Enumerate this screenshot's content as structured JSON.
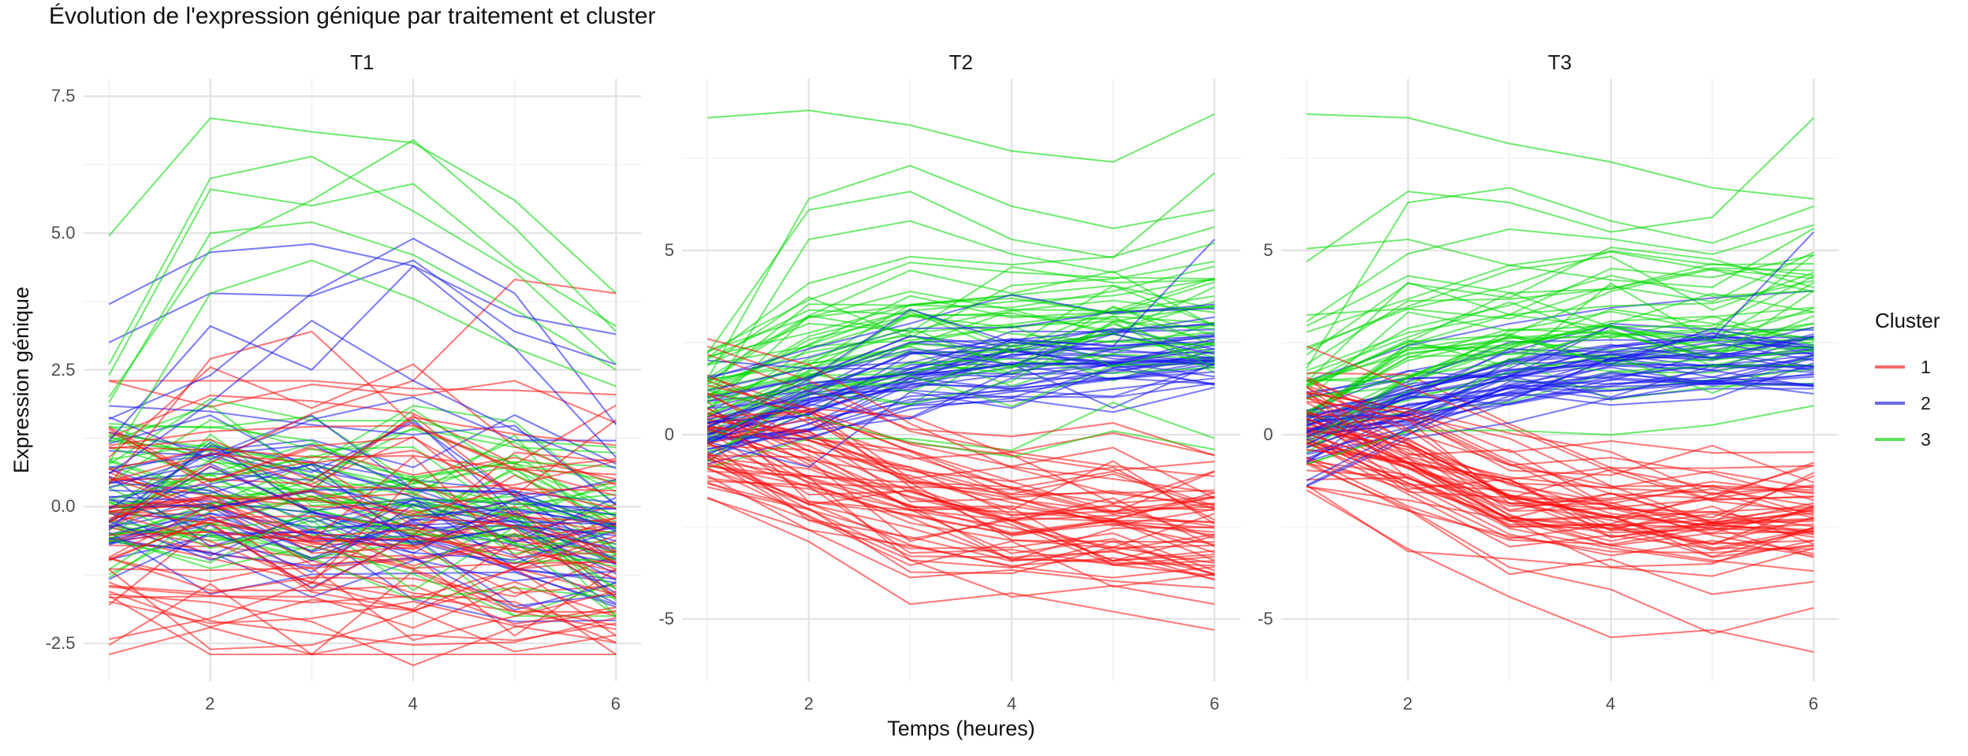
{
  "title": "Évolution de l'expression génique par traitement et cluster",
  "axes": {
    "x_label": "Temps (heures)",
    "y_label": "Expression génique"
  },
  "legend": {
    "title": "Cluster",
    "position": "right",
    "items": [
      {
        "label": "1",
        "swatch_color": "#fb6b6b"
      },
      {
        "label": "2",
        "swatch_color": "#6b6be9"
      },
      {
        "label": "3",
        "swatch_color": "#5ce05c"
      }
    ]
  },
  "style": {
    "background": "#ffffff",
    "grid_major_color": "#e3e3e3",
    "grid_minor_color": "#f0f0f0",
    "tick_text_color": "#4d4d4d",
    "line_opacity": 0.55,
    "line_width": 2.1,
    "cluster_colors": {
      "1": "#ff0d0d",
      "2": "#1414f0",
      "3": "#00d900"
    }
  },
  "chart_data": {
    "type": "line",
    "subtype": "spaghetti-facets",
    "seed": 7,
    "x": [
      1,
      2,
      3,
      4,
      5,
      6
    ],
    "x_range": [
      0.75,
      6.25
    ],
    "x_ticks": [
      2,
      4,
      6
    ],
    "x_minor": [
      1,
      3,
      5
    ],
    "grid": true,
    "facets": [
      {
        "label": "T1",
        "y_range": [
          -3.19,
          7.82
        ],
        "y_ticks": [
          {
            "v": 7.5,
            "t": "7.5"
          },
          {
            "v": 5.0,
            "t": "5.0"
          },
          {
            "v": 2.5,
            "t": "2.5"
          },
          {
            "v": 0.0,
            "t": "0.0"
          },
          {
            "v": -2.5,
            "t": "-2.5"
          }
        ],
        "y_minor": [
          6.25,
          3.75,
          1.25,
          -1.25
        ],
        "clusters": [
          {
            "name": "1",
            "n": 58,
            "mean": [
              0.0,
              -0.05,
              -0.15,
              -0.25,
              -0.3,
              -0.45
            ],
            "spread": 0.85,
            "noise": 0.5,
            "clamp": [
              -2.7,
              2.3
            ],
            "features": [
              [
                0.4,
                2.7,
                3.2,
                1.5,
                0.7,
                0.2
              ],
              [
                -0.3,
                0.8,
                1.7,
                2.3,
                4.15,
                3.9
              ],
              [
                0.9,
                2.55,
                1.8,
                2.6,
                1.1,
                0.4
              ],
              [
                -1.6,
                -1.75,
                -2.1,
                -2.9,
                -2.2,
                -1.9
              ],
              [
                -1.55,
                -2.2,
                -1.7,
                -1.9,
                -2.65,
                -2.35
              ]
            ]
          },
          {
            "name": "2",
            "n": 44,
            "mean": [
              0.1,
              0.1,
              0.0,
              -0.15,
              -0.35,
              -0.6
            ],
            "spread": 0.6,
            "noise": 0.45,
            "clamp": [
              -2.2,
              2.0
            ],
            "features": [
              [
                3.7,
                4.65,
                4.8,
                4.4,
                3.5,
                3.15
              ],
              [
                3.0,
                3.9,
                3.85,
                4.5,
                3.2,
                2.6
              ],
              [
                1.6,
                2.4,
                3.9,
                4.9,
                3.9,
                1.5
              ],
              [
                1.2,
                3.3,
                2.5,
                4.4,
                2.9,
                0.9
              ],
              [
                0.6,
                1.9,
                3.4,
                2.3,
                1.4,
                0.7
              ]
            ]
          },
          {
            "name": "3",
            "n": 44,
            "mean": [
              0.2,
              0.3,
              0.35,
              0.2,
              -0.1,
              -0.45
            ],
            "spread": 0.65,
            "noise": 0.5,
            "clamp": [
              -2.0,
              2.2
            ],
            "features": [
              [
                4.95,
                7.1,
                6.85,
                6.65,
                5.6,
                3.9
              ],
              [
                2.6,
                6.0,
                6.4,
                5.4,
                4.3,
                2.6
              ],
              [
                2.4,
                5.8,
                5.5,
                5.9,
                4.4,
                3.3
              ],
              [
                1.9,
                5.0,
                5.2,
                4.6,
                3.6,
                2.5
              ],
              [
                2.0,
                4.7,
                5.6,
                6.7,
                5.1,
                3.2
              ],
              [
                0.8,
                3.9,
                4.5,
                3.8,
                2.9,
                2.2
              ]
            ]
          }
        ]
      },
      {
        "label": "T2",
        "y_range": [
          -6.69,
          9.66
        ],
        "y_ticks": [
          {
            "v": 5,
            "t": "5"
          },
          {
            "v": 0,
            "t": "0"
          },
          {
            "v": -5,
            "t": "-5"
          }
        ],
        "y_minor": [
          7.5,
          2.5,
          -2.5
        ],
        "clusters": [
          {
            "name": "1",
            "n": 58,
            "mean": [
              0.2,
              -0.8,
              -1.7,
              -2.1,
              -2.3,
              -2.4
            ],
            "spread": 0.75,
            "noise": 0.4,
            "clamp": [
              -4.3,
              2.4
            ],
            "features": [
              [
                2.6,
                1.9,
                0.3,
                -0.9,
                -1.6,
                -1.9
              ],
              [
                -1.7,
                -2.9,
                -4.6,
                -4.3,
                -4.8,
                -5.3
              ],
              [
                -0.9,
                -2.2,
                -3.4,
                -4.4,
                -4.1,
                -4.6
              ]
            ]
          },
          {
            "name": "2",
            "n": 44,
            "mean": [
              0.1,
              0.8,
              1.5,
              1.9,
              2.0,
              2.1
            ],
            "spread": 0.5,
            "noise": 0.3,
            "clamp": [
              -1.5,
              3.8
            ],
            "features": [
              [
                0.3,
                1.2,
                2.2,
                2.6,
                2.4,
                5.3
              ],
              [
                0.2,
                1.5,
                3.4,
                2.5,
                2.3,
                2.7
              ]
            ]
          },
          {
            "name": "3",
            "n": 44,
            "mean": [
              0.9,
              2.3,
              2.9,
              3.0,
              3.1,
              3.2
            ],
            "spread": 0.9,
            "noise": 0.45,
            "clamp": [
              -0.9,
              6.3
            ],
            "features": [
              [
                8.6,
                8.8,
                8.4,
                7.7,
                7.4,
                8.7
              ],
              [
                1.5,
                6.4,
                7.3,
                6.2,
                5.6,
                6.1
              ],
              [
                2.2,
                6.1,
                6.6,
                5.3,
                4.8,
                7.1
              ],
              [
                0.9,
                5.3,
                5.8,
                4.9,
                4.4,
                5.2
              ],
              [
                1.2,
                0.5,
                -0.2,
                -0.6,
                0.1,
                -0.4
              ]
            ]
          }
        ]
      },
      {
        "label": "T3",
        "y_range": [
          -6.69,
          9.66
        ],
        "y_ticks": [
          {
            "v": 5,
            "t": "5"
          },
          {
            "v": 0,
            "t": "0"
          },
          {
            "v": -5,
            "t": "-5"
          }
        ],
        "y_minor": [
          7.5,
          2.5,
          -2.5
        ],
        "clusters": [
          {
            "name": "1",
            "n": 58,
            "mean": [
              0.1,
              -0.9,
              -1.8,
              -2.2,
              -2.4,
              -2.3
            ],
            "spread": 0.75,
            "noise": 0.4,
            "clamp": [
              -4.4,
              2.4
            ],
            "features": [
              [
                2.4,
                1.3,
                0.2,
                -1.0,
                -1.8,
                -2.1
              ],
              [
                -1.5,
                -3.1,
                -4.4,
                -5.5,
                -5.3,
                -5.9
              ],
              [
                -0.8,
                -2.0,
                -3.6,
                -4.2,
                -5.4,
                -4.7
              ]
            ]
          },
          {
            "name": "2",
            "n": 44,
            "mean": [
              0.2,
              0.9,
              1.6,
              2.0,
              2.1,
              2.2
            ],
            "spread": 0.5,
            "noise": 0.3,
            "clamp": [
              -1.4,
              3.9
            ],
            "features": [
              [
                0.1,
                1.1,
                2.0,
                2.4,
                2.6,
                5.5
              ]
            ]
          },
          {
            "name": "3",
            "n": 44,
            "mean": [
              1.0,
              2.4,
              3.0,
              3.1,
              3.0,
              3.3
            ],
            "spread": 0.9,
            "noise": 0.45,
            "clamp": [
              -0.8,
              6.3
            ],
            "features": [
              [
                8.7,
                8.6,
                7.9,
                7.4,
                6.7,
                6.4
              ],
              [
                4.7,
                6.6,
                6.3,
                5.5,
                5.9,
                8.6
              ],
              [
                1.8,
                6.3,
                6.7,
                5.8,
                5.2,
                6.2
              ],
              [
                5.05,
                5.3,
                4.6,
                4.2,
                4.0,
                5.6
              ]
            ]
          }
        ]
      }
    ]
  }
}
